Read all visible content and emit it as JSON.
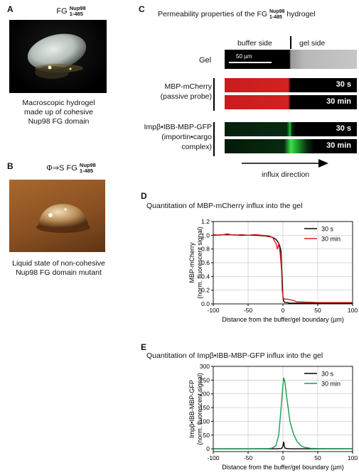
{
  "panelA": {
    "letter": "A",
    "title_main": "FG",
    "title_sup": "Nup98",
    "title_sub": "1-485",
    "caption": [
      "Macroscopic hydrogel",
      "made up of cohesive",
      "Nup98 FG domain"
    ]
  },
  "panelB": {
    "letter": "B",
    "title_main": "Φ⇒S FG",
    "title_sup": "Nup98",
    "title_sub": "1-485",
    "caption": [
      "Liquid state of non-cohesive",
      "Nup98 FG domain mutant"
    ]
  },
  "panelC": {
    "letter": "C",
    "title_main": "Permeability properties of the FG",
    "title_sup": "Nup98",
    "title_sub": "1-485",
    "title_end": "hydrogel",
    "buffer_side": "buffer side",
    "gel_side": "gel side",
    "gel_label": "Gel",
    "scale": "50 µm",
    "probe1": [
      "MBP-mCherry",
      "(passive probe)"
    ],
    "probe2": [
      "Impβ•IBB-MBP-GFP",
      "(importin•cargo",
      "complex)"
    ],
    "t1": "30 s",
    "t2": "30 min",
    "influx": "influx direction"
  },
  "panelD": {
    "letter": "D",
    "title": "Quantitation of MBP-mCherry influx into the gel"
  },
  "panelE": {
    "letter": "E",
    "title": "Quantitation of Impβ•IBB-MBP-GFP influx into the gel"
  },
  "colors": {
    "red": "#d62020",
    "green": "#1a9a50",
    "black": "#000000"
  },
  "chart_data": [
    {
      "type": "line",
      "xlabel": "Distance from the buffer/gel boundary (µm)",
      "ylabel": [
        "MBP-mCherry",
        "(norm. fluorescent signal)"
      ],
      "xlim": [
        -100,
        100
      ],
      "ylim": [
        0,
        1.2
      ],
      "xticks": [
        -100,
        -50,
        0,
        50,
        100
      ],
      "yticks": [
        0.0,
        0.2,
        0.4,
        0.6,
        0.8,
        1.0,
        1.2
      ],
      "ytick_labels": [
        "0.0",
        "0.2",
        "0.4",
        "0.6",
        "0.8",
        "1.0",
        "1.2"
      ],
      "grid": true,
      "legend": "top-right",
      "series": [
        {
          "name": "30 s",
          "color": "#000000",
          "x": [
            -100,
            -80,
            -60,
            -40,
            -25,
            -15,
            -10,
            -7,
            -5,
            -3,
            -1,
            0,
            1,
            3,
            5,
            10,
            20,
            50,
            100
          ],
          "y": [
            1.0,
            1.01,
            1.0,
            1.0,
            0.99,
            0.97,
            0.94,
            0.9,
            0.86,
            0.78,
            0.35,
            0.1,
            0.04,
            0.02,
            0.02,
            0.01,
            0.01,
            0.01,
            0.01
          ]
        },
        {
          "name": "30 min",
          "color": "#d62020",
          "x": [
            -100,
            -90,
            -80,
            -70,
            -60,
            -50,
            -40,
            -30,
            -20,
            -15,
            -10,
            -8,
            -6,
            -4,
            -2,
            -1,
            0,
            1,
            2,
            5,
            10,
            15,
            20,
            50,
            100
          ],
          "y": [
            1.01,
            1.0,
            1.02,
            1.0,
            1.01,
            1.0,
            1.01,
            1.0,
            0.99,
            0.97,
            0.88,
            0.8,
            0.88,
            0.74,
            0.5,
            0.2,
            0.1,
            0.08,
            0.07,
            0.07,
            0.06,
            0.05,
            0.03,
            0.02,
            0.02
          ]
        }
      ]
    },
    {
      "type": "line",
      "xlabel": "Distance from the buffer/gel boundary (µm)",
      "ylabel": [
        "Impβ•IBB-MBP-GFP",
        "(norm. fluorescent signal)"
      ],
      "xlim": [
        -100,
        100
      ],
      "ylim": [
        -10,
        300
      ],
      "xticks": [
        -100,
        -50,
        0,
        50,
        100
      ],
      "yticks": [
        0,
        50,
        100,
        150,
        200,
        250,
        300
      ],
      "ytick_labels": [
        "0",
        "50",
        "100",
        "150",
        "200",
        "250",
        "300"
      ],
      "grid": true,
      "legend": "top-right",
      "series": [
        {
          "name": "30 s",
          "color": "#000000",
          "x": [
            -100,
            -50,
            -10,
            -2,
            0,
            1,
            2,
            3,
            5,
            10,
            50,
            100
          ],
          "y": [
            0,
            0,
            0,
            1,
            10,
            25,
            10,
            3,
            1,
            0,
            0,
            0
          ]
        },
        {
          "name": "30 min",
          "color": "#1a9a50",
          "x": [
            -100,
            -50,
            -20,
            -15,
            -10,
            -6,
            -3,
            0,
            1,
            2,
            3,
            5,
            8,
            10,
            15,
            20,
            25,
            30,
            40,
            50,
            100
          ],
          "y": [
            0,
            0,
            1,
            3,
            12,
            50,
            140,
            230,
            258,
            252,
            240,
            195,
            140,
            100,
            55,
            28,
            13,
            6,
            2,
            1,
            0
          ]
        }
      ]
    }
  ]
}
